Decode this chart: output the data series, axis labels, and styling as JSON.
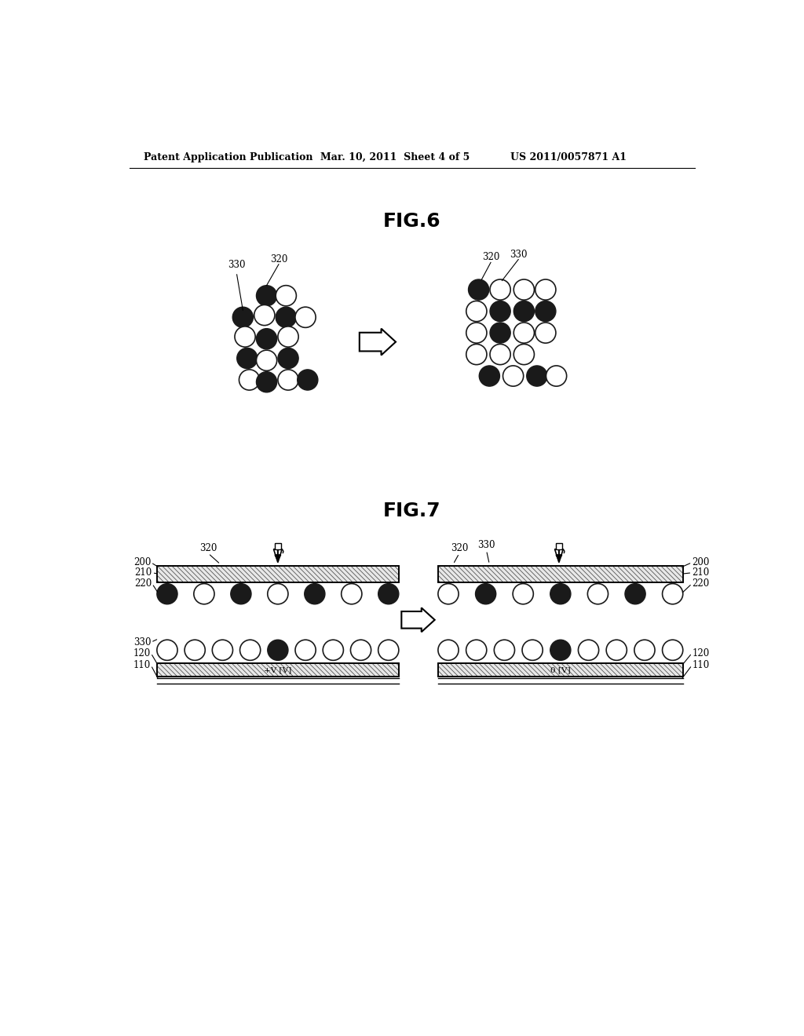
{
  "header_left": "Patent Application Publication",
  "header_center": "Mar. 10, 2011  Sheet 4 of 5",
  "header_right": "US 2011/0057871 A1",
  "fig6_title": "FIG.6",
  "fig7_title": "FIG.7",
  "bg_color": "#ffffff",
  "black_particle_color": "#1a1a1a",
  "white_particle_color": "#ffffff",
  "particle_edge_color": "#1a1a1a",
  "label_fontsize": 8.5,
  "header_fontsize": 9,
  "fig_title_fontsize": 18
}
